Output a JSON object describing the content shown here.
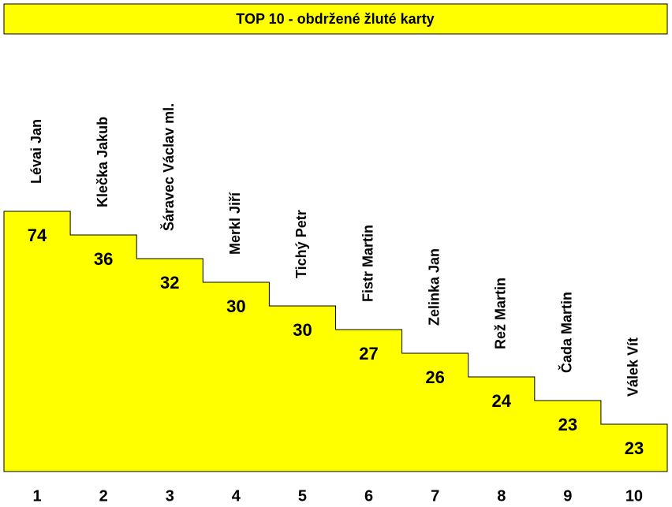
{
  "title": "TOP 10 - obdržené žluté karty",
  "ranking": [
    {
      "rank": 1,
      "name": "Lévai Jan",
      "cards": 74
    },
    {
      "rank": 2,
      "name": "Klečka Jakub",
      "cards": 36
    },
    {
      "rank": 3,
      "name": "Šáravec Václav ml.",
      "cards": 32
    },
    {
      "rank": 4,
      "name": "Merkl Jiří",
      "cards": 30
    },
    {
      "rank": 5,
      "name": "Tichý Petr",
      "cards": 30
    },
    {
      "rank": 6,
      "name": "Fistr Martin",
      "cards": 27
    },
    {
      "rank": 7,
      "name": "Zelinka Jan",
      "cards": 26
    },
    {
      "rank": 8,
      "name": "Rež Martin",
      "cards": 24
    },
    {
      "rank": 9,
      "name": "Čada Martin",
      "cards": 23
    },
    {
      "rank": 10,
      "name": "Válek Vít",
      "cards": 23
    }
  ]
}
